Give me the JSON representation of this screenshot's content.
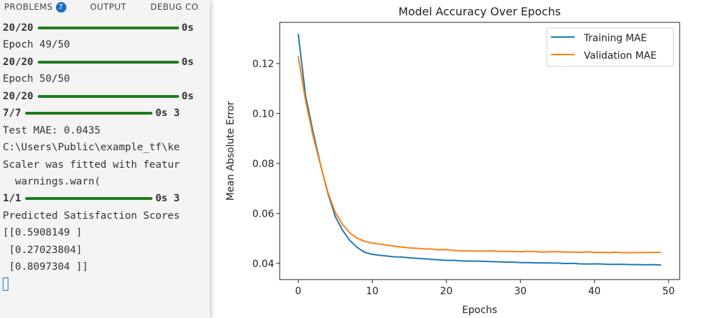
{
  "terminal": {
    "tabs": [
      {
        "label": "PROBLEMS",
        "badge": "7"
      },
      {
        "label": "OUTPUT"
      },
      {
        "label": "DEBUG CO"
      }
    ],
    "lines": [
      {
        "type": "progress",
        "step": "20/20",
        "time": "0s",
        "bar": "long"
      },
      {
        "type": "text",
        "text": "Epoch 49/50"
      },
      {
        "type": "progress",
        "step": "20/20",
        "time": "0s",
        "bar": "long"
      },
      {
        "type": "text",
        "text": "Epoch 50/50"
      },
      {
        "type": "progress",
        "step": "20/20",
        "time": "0s",
        "bar": "long"
      },
      {
        "type": "progress",
        "step": "7/7",
        "time": "0s 3",
        "bar": "short"
      },
      {
        "type": "text",
        "text": "Test MAE: 0.0435"
      },
      {
        "type": "text",
        "text": "C:\\Users\\Public\\example_tf\\ke"
      },
      {
        "type": "text",
        "text": "Scaler was fitted with featur"
      },
      {
        "type": "text",
        "text": "  warnings.warn("
      },
      {
        "type": "progress",
        "step": "1/1",
        "time": "0s 3",
        "bar": "short"
      },
      {
        "type": "text",
        "text": "Predicted Satisfaction Scores"
      },
      {
        "type": "text",
        "text": "[[0.5908149 ]"
      },
      {
        "type": "text",
        "text": " [0.27023804]"
      },
      {
        "type": "text",
        "text": " [0.8097304 ]]"
      },
      {
        "type": "cursor"
      }
    ],
    "progress_color": "#1c7c1c"
  },
  "chart_data": {
    "type": "line",
    "title": "Model Accuracy Over Epochs",
    "xlabel": "Epochs",
    "ylabel": "Mean Absolute Error",
    "xlim": [
      -2.5,
      51.5
    ],
    "ylim": [
      0.0335,
      0.1365
    ],
    "xticks": [
      0,
      10,
      20,
      30,
      40,
      50
    ],
    "yticks": [
      0.04,
      0.06,
      0.08,
      0.1,
      0.12
    ],
    "ytick_labels": [
      "0.04",
      "0.06",
      "0.08",
      "0.10",
      "0.12"
    ],
    "grid": false,
    "legend": "top-right",
    "x": [
      0,
      1,
      2,
      3,
      4,
      5,
      6,
      7,
      8,
      9,
      10,
      11,
      12,
      13,
      14,
      15,
      16,
      17,
      18,
      19,
      20,
      21,
      22,
      23,
      24,
      25,
      26,
      27,
      28,
      29,
      30,
      31,
      32,
      33,
      34,
      35,
      36,
      37,
      38,
      39,
      40,
      41,
      42,
      43,
      44,
      45,
      46,
      47,
      48,
      49
    ],
    "series": [
      {
        "name": "Training MAE",
        "color": "#1f77b4",
        "values": [
          0.1319,
          0.107,
          0.0927,
          0.0797,
          0.068,
          0.0588,
          0.0532,
          0.0491,
          0.0463,
          0.0444,
          0.0436,
          0.0432,
          0.0429,
          0.0426,
          0.0425,
          0.0422,
          0.042,
          0.0418,
          0.0416,
          0.0414,
          0.0412,
          0.0412,
          0.041,
          0.0409,
          0.0409,
          0.0408,
          0.0407,
          0.0406,
          0.0405,
          0.0405,
          0.0403,
          0.0403,
          0.0402,
          0.0402,
          0.0401,
          0.0401,
          0.0399,
          0.04,
          0.0398,
          0.0397,
          0.0398,
          0.0397,
          0.0396,
          0.0396,
          0.0396,
          0.0395,
          0.0395,
          0.0394,
          0.0395,
          0.0393
        ]
      },
      {
        "name": "Validation MAE",
        "color": "#ff7f0e",
        "values": [
          0.123,
          0.105,
          0.091,
          0.0795,
          0.0685,
          0.0604,
          0.0555,
          0.0521,
          0.05,
          0.0488,
          0.0481,
          0.0477,
          0.0473,
          0.0469,
          0.0465,
          0.0462,
          0.046,
          0.0458,
          0.0457,
          0.0454,
          0.0455,
          0.0452,
          0.045,
          0.045,
          0.0449,
          0.0449,
          0.045,
          0.0448,
          0.0448,
          0.0447,
          0.0446,
          0.0448,
          0.0447,
          0.0445,
          0.0446,
          0.0446,
          0.0445,
          0.0445,
          0.0444,
          0.0446,
          0.0444,
          0.0444,
          0.0443,
          0.0445,
          0.0442,
          0.0443,
          0.0443,
          0.0443,
          0.0444,
          0.0444
        ]
      }
    ]
  }
}
